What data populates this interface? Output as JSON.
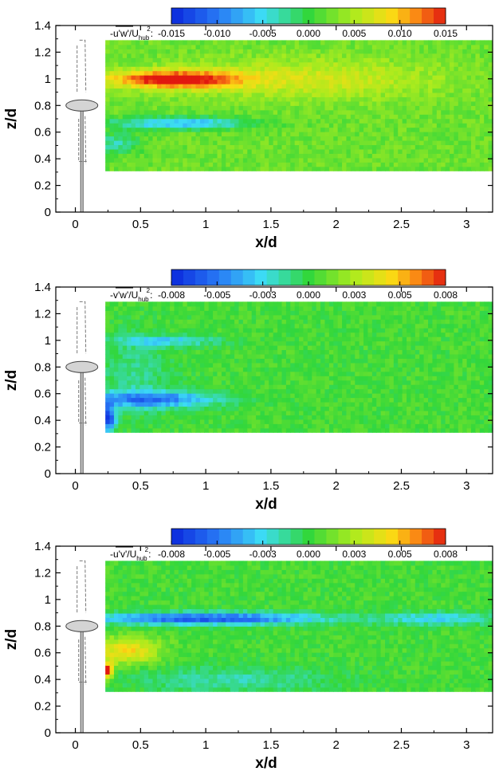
{
  "chart_data": [
    {
      "type": "heatmap",
      "title": "",
      "xlabel": "x/d",
      "ylabel": "z/d",
      "xlim": [
        -0.15,
        3.2
      ],
      "ylim": [
        0,
        1.4
      ],
      "xticks": [
        "0",
        "0.5",
        "1",
        "1.5",
        "2",
        "2.5",
        "3"
      ],
      "yticks": [
        "0",
        "0.2",
        "0.4",
        "0.6",
        "0.8",
        "1",
        "1.2",
        "1.4"
      ],
      "field_extent": {
        "x": [
          0.23,
          3.2
        ],
        "z": [
          0.31,
          1.29
        ]
      },
      "colorbar": {
        "label_main": "-u'w'/U",
        "label_sub": "hub",
        "label_sup": "2",
        "label_tail": ":",
        "range": [
          -0.015,
          0.015
        ],
        "ticks": [
          "-0.015",
          "-0.010",
          "-0.005",
          "0.000",
          "0.005",
          "0.010",
          "0.015"
        ]
      },
      "features": [
        {
          "sign": "positive",
          "x": [
            0.25,
            1.5
          ],
          "z_center": 1.0,
          "peak": 0.014
        },
        {
          "sign": "negative",
          "x": [
            0.25,
            1.3
          ],
          "z_center": 0.67,
          "peak": -0.008
        }
      ]
    },
    {
      "type": "heatmap",
      "title": "",
      "xlabel": "x/d",
      "ylabel": "z/d",
      "xlim": [
        -0.15,
        3.2
      ],
      "ylim": [
        0,
        1.4
      ],
      "xticks": [
        "0",
        "0.5",
        "1",
        "1.5",
        "2",
        "2.5",
        "3"
      ],
      "yticks": [
        "0",
        "0.2",
        "0.4",
        "0.6",
        "0.8",
        "1",
        "1.2",
        "1.4"
      ],
      "field_extent": {
        "x": [
          0.23,
          3.2
        ],
        "z": [
          0.31,
          1.29
        ]
      },
      "colorbar": {
        "label_main": "-v'w'/U",
        "label_sub": "hub",
        "label_sup": "2",
        "label_tail": ":",
        "range": [
          -0.008,
          0.008
        ],
        "ticks": [
          "-0.008",
          "-0.005",
          "-0.003",
          "0.000",
          "0.003",
          "0.005",
          "0.008"
        ]
      },
      "features": [
        {
          "sign": "negative",
          "x": [
            0.25,
            1.1
          ],
          "z_center": 1.0,
          "peak": -0.0045
        },
        {
          "sign": "negative",
          "x": [
            0.25,
            1.15
          ],
          "z_center": 0.56,
          "peak": -0.006
        }
      ]
    },
    {
      "type": "heatmap",
      "title": "",
      "xlabel": "x/d",
      "ylabel": "z/d",
      "xlim": [
        -0.15,
        3.2
      ],
      "ylim": [
        0,
        1.4
      ],
      "xticks": [
        "0",
        "0.5",
        "1",
        "1.5",
        "2",
        "2.5",
        "3"
      ],
      "yticks": [
        "0",
        "0.2",
        "0.4",
        "0.6",
        "0.8",
        "1",
        "1.2",
        "1.4"
      ],
      "field_extent": {
        "x": [
          0.23,
          3.2
        ],
        "z": [
          0.31,
          1.29
        ]
      },
      "colorbar": {
        "label_main": "-u'v'/U",
        "label_sub": "hub",
        "label_sup": "2",
        "label_tail": ":",
        "range": [
          -0.008,
          0.008
        ],
        "ticks": [
          "-0.008",
          "-0.005",
          "-0.003",
          "0.000",
          "0.003",
          "0.005",
          "0.008"
        ]
      },
      "features": [
        {
          "sign": "negative",
          "x": [
            0.25,
            2.2
          ],
          "z_center": 0.86,
          "peak": -0.007
        },
        {
          "sign": "positive",
          "x": [
            0.23,
            0.35
          ],
          "z_center": 0.47,
          "peak": 0.008
        }
      ]
    }
  ]
}
